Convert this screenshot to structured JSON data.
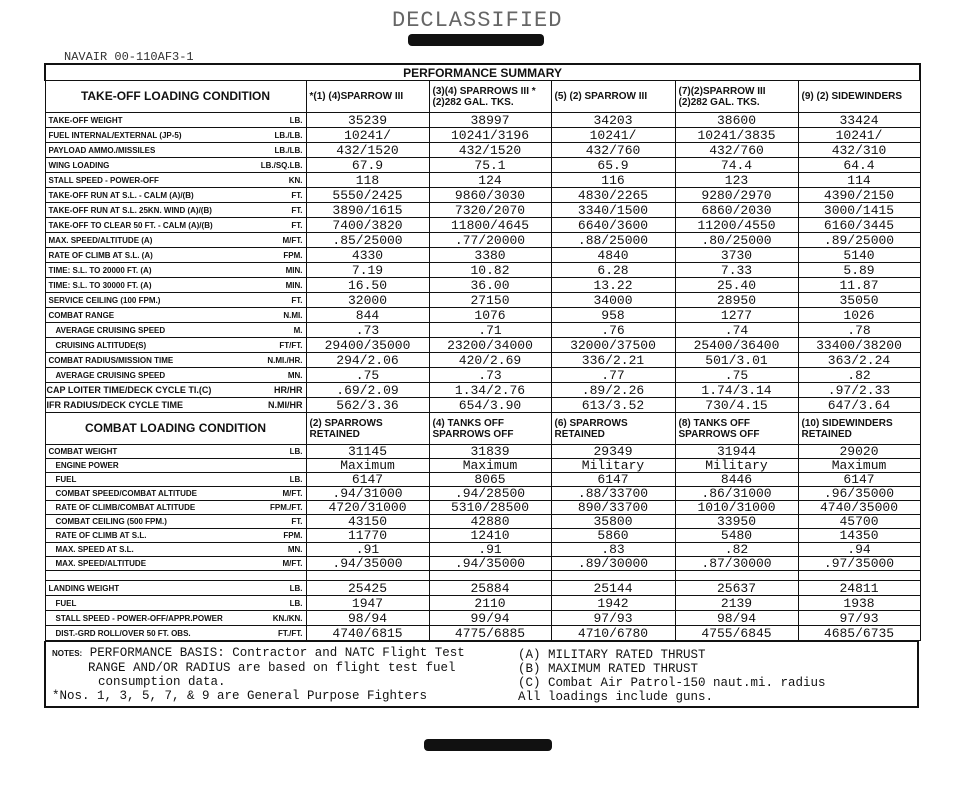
{
  "stamp": "DECLASSIFIED",
  "doc_number": "NAVAIR 00-110AF3-1",
  "title": "PERFORMANCE SUMMARY",
  "takeoff": {
    "header": "TAKE-OFF LOADING CONDITION",
    "columns": [
      "*(1) (4)SPARROW III",
      "(3)(4) SPARROWS III *(2)282 GAL. TKS.",
      "(5) (2) SPARROW III",
      "(7)(2)SPARROW III (2)282 GAL. TKS.",
      "(9) (2) SIDEWINDERS"
    ],
    "rows": [
      {
        "label": "TAKE-OFF WEIGHT",
        "unit": "LB.",
        "values": [
          "35239",
          "38997",
          "34203",
          "38600",
          "33424"
        ]
      },
      {
        "label": "FUEL INTERNAL/EXTERNAL (JP-5)",
        "unit": "LB./LB.",
        "values": [
          "10241/",
          "10241/3196",
          "10241/",
          "10241/3835",
          "10241/"
        ]
      },
      {
        "label": "PAYLOAD AMMO./MISSILES",
        "unit": "LB./LB.",
        "values": [
          "432/1520",
          "432/1520",
          "432/760",
          "432/760",
          "432/310"
        ]
      },
      {
        "label": "WING LOADING",
        "unit": "LB./SQ.LB.",
        "values": [
          "67.9",
          "75.1",
          "65.9",
          "74.4",
          "64.4"
        ]
      },
      {
        "label": "STALL SPEED - POWER-OFF",
        "unit": "KN.",
        "values": [
          "118",
          "124",
          "116",
          "123",
          "114"
        ]
      },
      {
        "label": "TAKE-OFF RUN AT S.L. - CALM (A)/(B)",
        "unit": "FT.",
        "values": [
          "5550/2425",
          "9860/3030",
          "4830/2265",
          "9280/2970",
          "4390/2150"
        ]
      },
      {
        "label": "TAKE-OFF RUN AT S.L. 25KN. WIND (A)/(B)",
        "unit": "FT.",
        "values": [
          "3890/1615",
          "7320/2070",
          "3340/1500",
          "6860/2030",
          "3000/1415"
        ]
      },
      {
        "label": "TAKE-OFF TO CLEAR 50 FT. - CALM (A)/(B)",
        "unit": "FT.",
        "values": [
          "7400/3820",
          "11800/4645",
          "6640/3600",
          "11200/4550",
          "6160/3445"
        ]
      },
      {
        "label": "MAX. SPEED/ALTITUDE (A)",
        "unit": "M/FT.",
        "values": [
          ".85/25000",
          ".77/20000",
          ".88/25000",
          ".80/25000",
          ".89/25000"
        ]
      },
      {
        "label": "RATE OF CLIMB AT S.L. (A)",
        "unit": "FPM.",
        "values": [
          "4330",
          "3380",
          "4840",
          "3730",
          "5140"
        ]
      },
      {
        "label": "TIME: S.L. TO 20000 FT. (A)",
        "unit": "MIN.",
        "values": [
          "7.19",
          "10.82",
          "6.28",
          "7.33",
          "5.89"
        ]
      },
      {
        "label": "TIME: S.L. TO 30000 FT. (A)",
        "unit": "MIN.",
        "values": [
          "16.50",
          "36.00",
          "13.22",
          "25.40",
          "11.87"
        ]
      },
      {
        "label": "SERVICE CEILING (100 FPM.)",
        "unit": "FT.",
        "values": [
          "32000",
          "27150",
          "34000",
          "28950",
          "35050"
        ]
      },
      {
        "label": "COMBAT RANGE",
        "unit": "N.MI.",
        "values": [
          "844",
          "1076",
          "958",
          "1277",
          "1026"
        ]
      },
      {
        "label": "AVERAGE CRUISING SPEED",
        "unit": "M.",
        "values": [
          ".73",
          ".71",
          ".76",
          ".74",
          ".78"
        ],
        "indent": true
      },
      {
        "label": "CRUISING ALTITUDE(S)",
        "unit": "FT/FT.",
        "values": [
          "29400/35000",
          "23200/34000",
          "32000/37500",
          "25400/36400",
          "33400/38200"
        ],
        "indent": true
      },
      {
        "label": "COMBAT RADIUS/MISSION TIME",
        "unit": "N.MI./HR.",
        "values": [
          "294/2.06",
          "420/2.69",
          "336/2.21",
          "501/3.01",
          "363/2.24"
        ]
      },
      {
        "label": "AVERAGE CRUISING SPEED",
        "unit": "Mn.",
        "values": [
          ".75",
          ".73",
          ".77",
          ".75",
          ".82"
        ],
        "indent": true
      },
      {
        "label": "CAP LOITER TIME/DECK CYCLE TI.(C)",
        "unit": "HR/HR",
        "values": [
          ".69/2.09",
          "1.34/2.76",
          ".89/2.26",
          "1.74/3.14",
          ".97/2.33"
        ],
        "big": true
      },
      {
        "label": "IFR RADIUS/DECK CYCLE TIME",
        "unit": "N.MI/HR",
        "values": [
          "562/3.36",
          "654/3.90",
          "613/3.52",
          "730/4.15",
          "647/3.64"
        ],
        "big": true
      }
    ]
  },
  "combat": {
    "header": "COMBAT LOADING CONDITION",
    "columns": [
      "(2) SPARROWS RETAINED",
      "(4) TANKS OFF SPARROWS OFF",
      "(6) SPARROWS RETAINED",
      "(8) TANKS OFF SPARROWS OFF",
      "(10) SIDEWINDERS RETAINED"
    ],
    "rows": [
      {
        "label": "COMBAT WEIGHT",
        "unit": "LB.",
        "values": [
          "31145",
          "31839",
          "29349",
          "31944",
          "29020"
        ]
      },
      {
        "label": "ENGINE POWER",
        "unit": "",
        "values": [
          "Maximum",
          "Maximum",
          "Military",
          "Military",
          "Maximum"
        ],
        "indent": true
      },
      {
        "label": "FUEL",
        "unit": "LB.",
        "values": [
          "6147",
          "8065",
          "6147",
          "8446",
          "6147"
        ],
        "indent": true
      },
      {
        "label": "COMBAT SPEED/COMBAT ALTITUDE",
        "unit": "M/FT.",
        "values": [
          ".94/31000",
          ".94/28500",
          ".88/33700",
          ".86/31000",
          ".96/35000"
        ],
        "indent": true
      },
      {
        "label": "RATE OF CLIMB/COMBAT ALTITUDE",
        "unit": "FPM./FT.",
        "values": [
          "4720/31000",
          "5310/28500",
          "890/33700",
          "1010/31000",
          "4740/35000"
        ],
        "indent": true
      },
      {
        "label": "COMBAT CEILING (500 FPM.)",
        "unit": "FT.",
        "values": [
          "43150",
          "42880",
          "35800",
          "33950",
          "45700"
        ],
        "indent": true
      },
      {
        "label": "RATE OF CLIMB AT S.L.",
        "unit": "FPM.",
        "values": [
          "11770",
          "12410",
          "5860",
          "5480",
          "14350"
        ],
        "indent": true
      },
      {
        "label": "MAX. SPEED AT S.L.",
        "unit": "Mn.",
        "values": [
          ".91",
          ".91",
          ".83",
          ".82",
          ".94"
        ],
        "indent": true
      },
      {
        "label": "MAX. SPEED/ALTITUDE",
        "unit": "M/FT.",
        "values": [
          ".94/35000",
          ".94/35000",
          ".89/30000",
          ".87/30000",
          ".97/35000"
        ],
        "indent": true
      }
    ]
  },
  "landing": {
    "rows": [
      {
        "label": "LANDING WEIGHT",
        "unit": "LB.",
        "values": [
          "25425",
          "25884",
          "25144",
          "25637",
          "24811"
        ]
      },
      {
        "label": "FUEL",
        "unit": "LB.",
        "values": [
          "1947",
          "2110",
          "1942",
          "2139",
          "1938"
        ],
        "indent": true
      },
      {
        "label": "STALL SPEED - POWER-OFF/APPR.POWER",
        "unit": "KN./KN.",
        "values": [
          "98/94",
          "99/94",
          "97/93",
          "98/94",
          "97/93"
        ],
        "indent": true
      },
      {
        "label": "DIST.-GRD ROLL/OVER 50 FT. OBS.",
        "unit": "FT./FT.",
        "values": [
          "4740/6815",
          "4775/6885",
          "4710/6780",
          "4755/6845",
          "4685/6735"
        ],
        "indent": true
      }
    ]
  },
  "notes": {
    "label": "NOTES:",
    "left": [
      "PERFORMANCE BASIS: Contractor and NATC Flight Test",
      "RANGE AND/OR RADIUS are based on flight test fuel",
      "consumption data.",
      "*Nos. 1, 3, 5, 7, & 9 are General Purpose Fighters"
    ],
    "right": [
      "(A) MILITARY RATED THRUST",
      "(B) MAXIMUM RATED THRUST",
      "(C) Combat Air Patrol-150 naut.mi. radius",
      "All loadings include guns."
    ]
  }
}
